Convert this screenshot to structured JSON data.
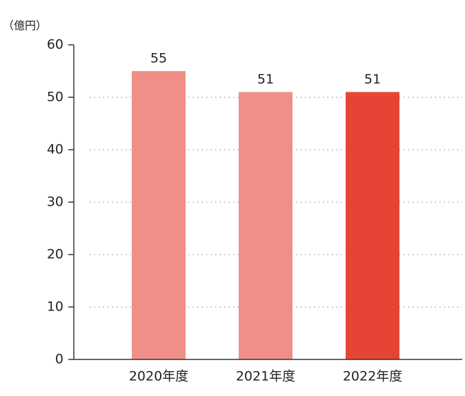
{
  "chart_data": {
    "type": "bar",
    "y_label": "（億円）",
    "categories": [
      "2020年度",
      "2021年度",
      "2022年度"
    ],
    "values": [
      55,
      51,
      51
    ],
    "colors": [
      "#f08f87",
      "#f08f87",
      "#e64536"
    ],
    "ylim": [
      0,
      60
    ],
    "yticks": [
      0,
      10,
      20,
      30,
      40,
      50,
      60
    ],
    "grid": true
  }
}
